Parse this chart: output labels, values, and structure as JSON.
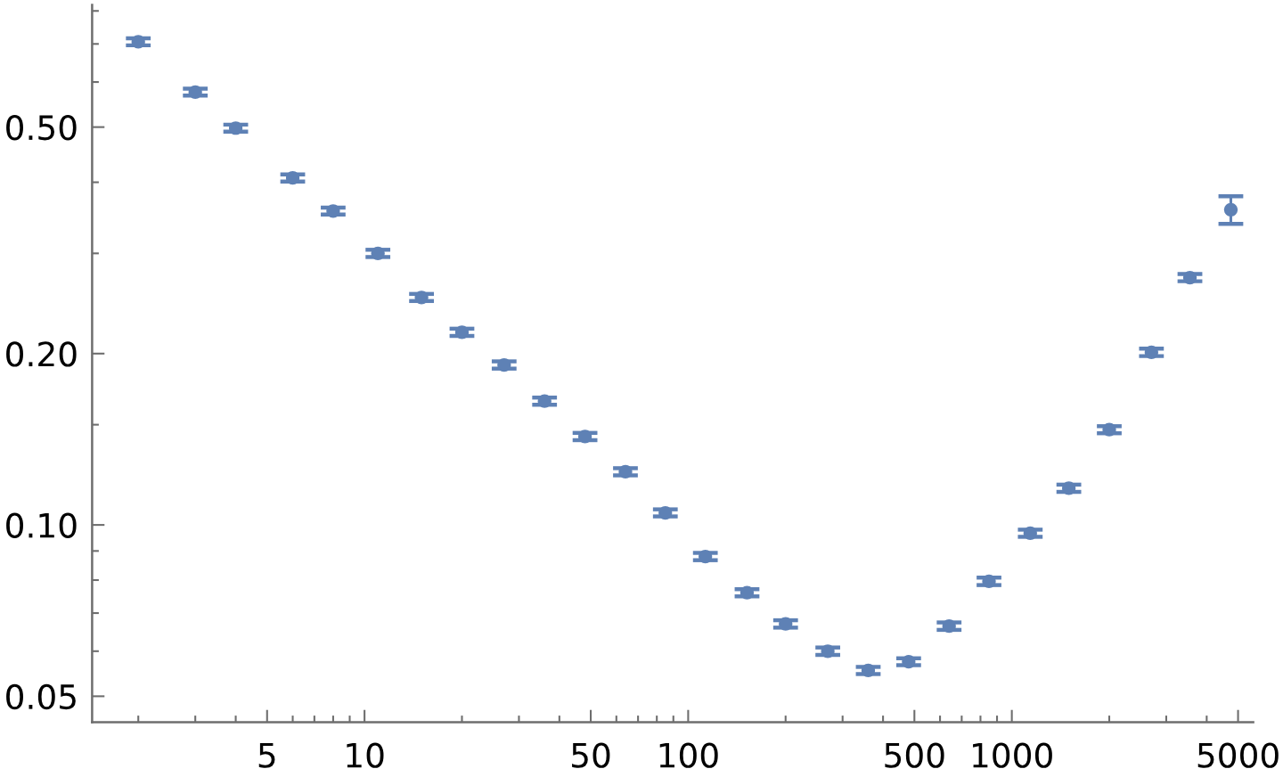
{
  "chart_data": {
    "type": "scatter",
    "color": "#5e81b5",
    "marker": "circle",
    "log": "xy",
    "x": [
      2,
      3,
      4,
      6,
      8,
      11,
      15,
      20,
      27,
      36,
      48,
      64,
      85,
      113,
      152,
      200,
      270,
      360,
      480,
      640,
      850,
      1140,
      1500,
      2000,
      2700,
      3550,
      4750
    ],
    "values": [
      0.706,
      0.576,
      0.498,
      0.407,
      0.356,
      0.3,
      0.251,
      0.218,
      0.191,
      0.165,
      0.143,
      0.124,
      0.105,
      0.088,
      0.076,
      0.067,
      0.06,
      0.0555,
      0.0575,
      0.0664,
      0.0796,
      0.0967,
      0.116,
      0.147,
      0.201,
      0.272,
      0.358
    ],
    "errors": [
      0.01,
      0.008,
      0.007,
      0.006,
      0.005,
      0.0044,
      0.0036,
      0.0032,
      0.0028,
      0.0024,
      0.0021,
      0.0018,
      0.0015,
      0.0013,
      0.0011,
      0.001,
      0.0009,
      0.0008,
      0.0008,
      0.001,
      0.0012,
      0.0014,
      0.0017,
      0.0021,
      0.003,
      0.004,
      0.02
    ],
    "xlim": [
      1.44,
      5570
    ],
    "ylim": [
      0.045,
      0.82
    ],
    "xticks": [
      {
        "value": 2,
        "label": null
      },
      {
        "value": 3,
        "label": null
      },
      {
        "value": 4,
        "label": null
      },
      5,
      {
        "value": 6,
        "label": null
      },
      {
        "value": 7,
        "label": null
      },
      {
        "value": 8,
        "label": null
      },
      {
        "value": 9,
        "label": null
      },
      10,
      {
        "value": 20,
        "label": null
      },
      {
        "value": 30,
        "label": null
      },
      {
        "value": 40,
        "label": null
      },
      50,
      {
        "value": 60,
        "label": null
      },
      {
        "value": 70,
        "label": null
      },
      {
        "value": 80,
        "label": null
      },
      {
        "value": 90,
        "label": null
      },
      100,
      {
        "value": 200,
        "label": null
      },
      {
        "value": 300,
        "label": null
      },
      {
        "value": 400,
        "label": null
      },
      500,
      {
        "value": 600,
        "label": null
      },
      {
        "value": 700,
        "label": null
      },
      {
        "value": 800,
        "label": null
      },
      {
        "value": 900,
        "label": null
      },
      1000,
      {
        "value": 2000,
        "label": null
      },
      {
        "value": 3000,
        "label": null
      },
      {
        "value": 4000,
        "label": null
      },
      5000
    ],
    "yticks": [
      0.05,
      {
        "value": 0.06,
        "label": null
      },
      {
        "value": 0.07,
        "label": null
      },
      {
        "value": 0.08,
        "label": null
      },
      {
        "value": 0.09,
        "label": null
      },
      {
        "value": 0.1,
        "label": "0.10"
      },
      {
        "value": 0.15,
        "label": null
      },
      {
        "value": 0.2,
        "label": "0.20"
      },
      {
        "value": 0.3,
        "label": null
      },
      {
        "value": 0.4,
        "label": null
      },
      {
        "value": 0.5,
        "label": "0.50"
      },
      {
        "value": 0.6,
        "label": null
      },
      {
        "value": 0.7,
        "label": null
      },
      {
        "value": 0.8,
        "label": null
      }
    ]
  }
}
